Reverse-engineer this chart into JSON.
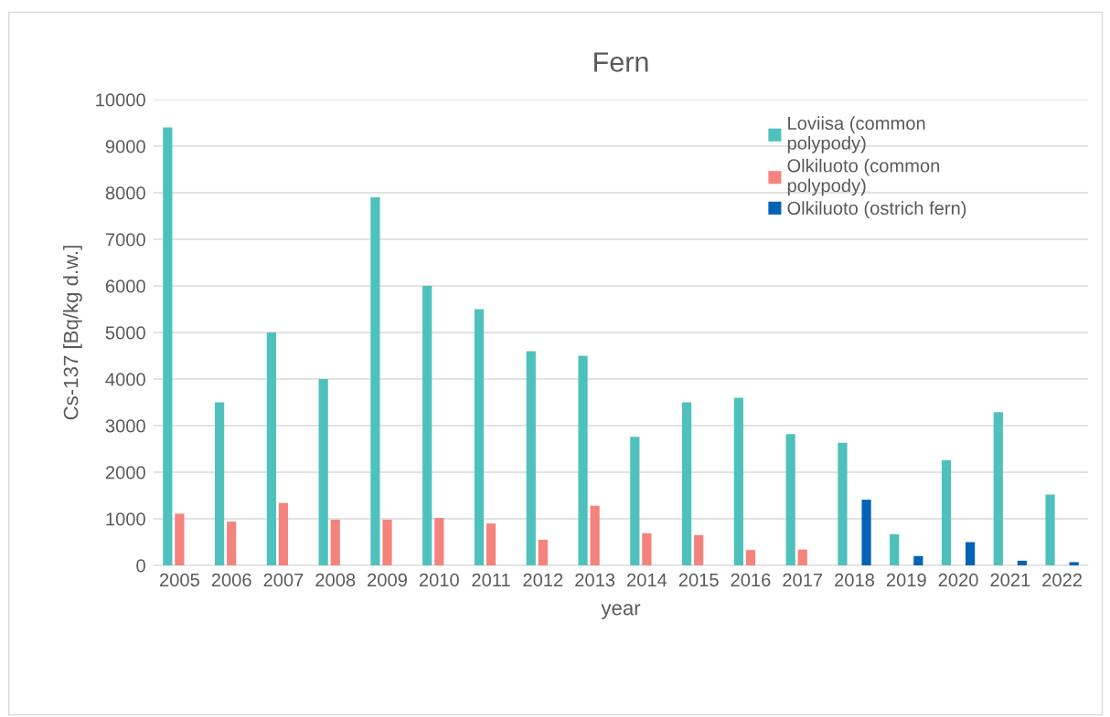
{
  "chart_data": {
    "type": "bar",
    "title": "Fern",
    "xlabel": "year",
    "ylabel": "Cs-137 [Bq/kg d.w.]",
    "categories": [
      "2005",
      "2006",
      "2007",
      "2008",
      "2009",
      "2010",
      "2011",
      "2012",
      "2013",
      "2014",
      "2015",
      "2016",
      "2017",
      "2018",
      "2019",
      "2020",
      "2021",
      "2022"
    ],
    "series": [
      {
        "name": "Loviisa (common\npolypody)",
        "color": "#4fc1bd",
        "values": [
          9400,
          3500,
          5000,
          4000,
          7900,
          6000,
          5500,
          4600,
          4500,
          2760,
          3500,
          3600,
          2820,
          2630,
          670,
          2260,
          3290,
          1520
        ]
      },
      {
        "name": "Olkiluoto (common\npolypody)",
        "color": "#f4837d",
        "values": [
          1110,
          940,
          1340,
          980,
          980,
          1020,
          900,
          550,
          1280,
          690,
          650,
          330,
          340,
          null,
          null,
          null,
          null,
          null
        ]
      },
      {
        "name": "Olkiluoto (ostrich fern)",
        "color": "#0563b5",
        "values": [
          null,
          null,
          null,
          null,
          null,
          null,
          null,
          null,
          null,
          null,
          null,
          null,
          null,
          1410,
          200,
          500,
          100,
          70
        ]
      }
    ],
    "ylim": [
      0,
      10000
    ],
    "yticks": [
      0,
      1000,
      2000,
      3000,
      4000,
      5000,
      6000,
      7000,
      8000,
      9000,
      10000
    ],
    "grid": "y",
    "legend": "top right"
  }
}
